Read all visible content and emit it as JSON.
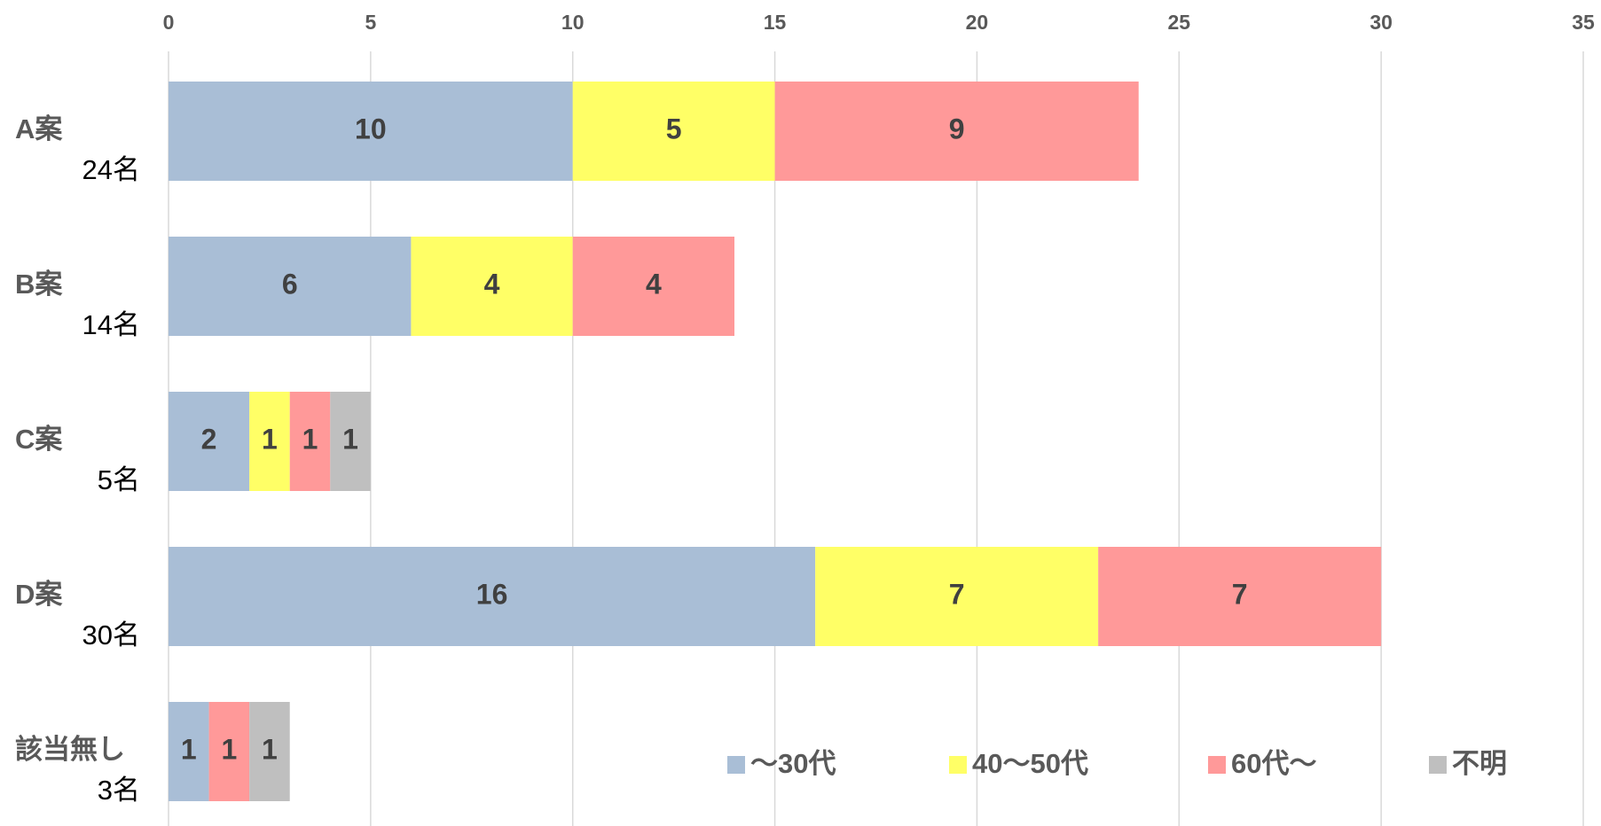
{
  "chart_data": {
    "type": "stacked-barh",
    "categories": [
      "A案",
      "B案",
      "C案",
      "D案",
      "該当無し"
    ],
    "totals": [
      "24名",
      "14名",
      "5名",
      "30名",
      "3名"
    ],
    "series": [
      {
        "name": "～30代",
        "color": "#a9bed6",
        "values": [
          10,
          6,
          2,
          16,
          1
        ]
      },
      {
        "name": "40～50代",
        "color": "#ffff66",
        "values": [
          5,
          4,
          1,
          7,
          0
        ]
      },
      {
        "name": "60代～",
        "color": "#ff9999",
        "values": [
          9,
          4,
          1,
          7,
          1
        ]
      },
      {
        "name": "不明",
        "color": "#bfbfbf",
        "values": [
          0,
          0,
          1,
          0,
          1
        ]
      }
    ],
    "xlim": [
      0,
      35
    ],
    "xticks": [
      0,
      5,
      10,
      15,
      20,
      25,
      30,
      35
    ],
    "grid": true,
    "legend": "bottom-right"
  }
}
